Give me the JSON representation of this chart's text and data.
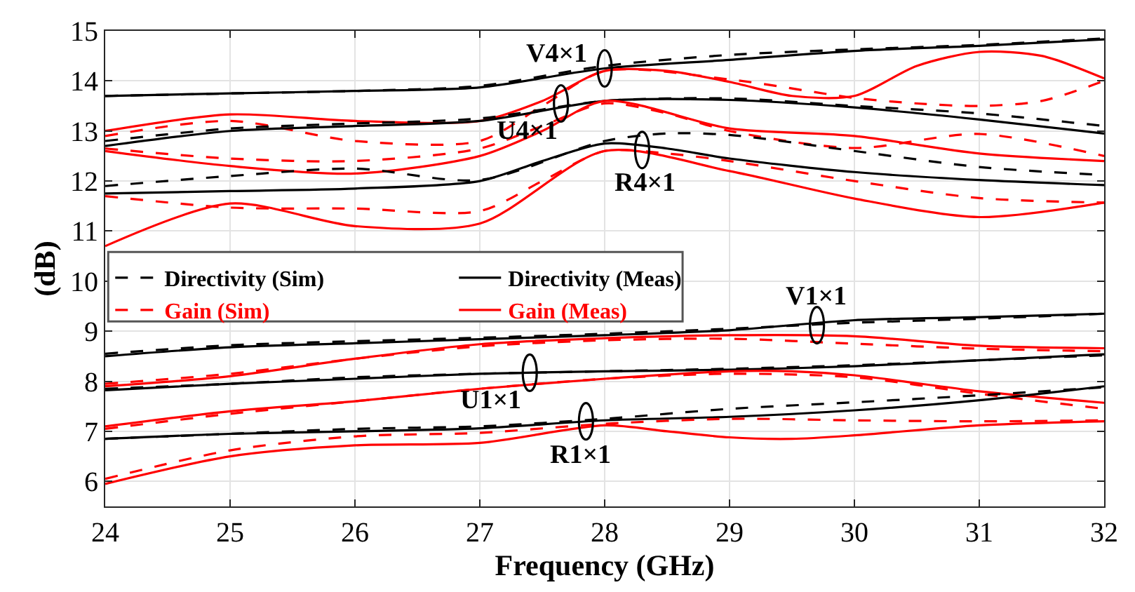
{
  "chart_data": {
    "type": "line",
    "xlabel": "Frequency (GHz)",
    "ylabel": "(dB)",
    "xlim": [
      24,
      32
    ],
    "ylim": [
      5.5,
      15
    ],
    "xticks": [
      24,
      25,
      26,
      27,
      28,
      29,
      30,
      31,
      32
    ],
    "yticks": [
      6,
      7,
      8,
      9,
      10,
      11,
      12,
      13,
      14,
      15
    ],
    "grid": true,
    "legend": "left",
    "marker": "none",
    "x": [
      24,
      25,
      26,
      27,
      28,
      29,
      30,
      31,
      32
    ],
    "series": [
      {
        "name": "Directivity (Sim)",
        "color": "#000000",
        "line_style": "dashed",
        "values": [
          13.7,
          13.75,
          13.8,
          13.9,
          14.3,
          14.52,
          14.63,
          14.72,
          14.85
        ]
      },
      {
        "name": "Directivity (Meas)",
        "color": "#000000",
        "line_style": "solid",
        "values": [
          13.7,
          13.75,
          13.8,
          13.87,
          14.25,
          14.42,
          14.6,
          14.7,
          14.83
        ]
      },
      {
        "name": "Gain (Sim)",
        "color": "#ff0000",
        "line_style": "dashed",
        "x": [
          24,
          25,
          26,
          27,
          27.5,
          28,
          29,
          30,
          30.5,
          31,
          31.5,
          32
        ],
        "values": [
          12.9,
          13.2,
          12.8,
          12.8,
          13.5,
          14.2,
          14.03,
          13.66,
          13.55,
          13.5,
          13.6,
          14.0
        ]
      },
      {
        "name": "Gain (Meas)",
        "color": "#ff0000",
        "line_style": "solid",
        "x": [
          24,
          25,
          26,
          27,
          27.5,
          28,
          28.5,
          29,
          29.5,
          30,
          30.5,
          31,
          31.5,
          32
        ],
        "values": [
          13.0,
          13.33,
          13.2,
          13.2,
          13.6,
          14.2,
          14.2,
          13.98,
          13.7,
          13.7,
          14.3,
          14.58,
          14.5,
          14.05
        ]
      },
      {
        "color": "#000000",
        "line_style": "dashed",
        "values": [
          12.8,
          13.05,
          13.15,
          13.25,
          13.6,
          13.65,
          13.5,
          13.35,
          13.1
        ]
      },
      {
        "color": "#000000",
        "line_style": "solid",
        "values": [
          12.7,
          13.0,
          13.1,
          13.2,
          13.6,
          13.62,
          13.47,
          13.23,
          12.95
        ]
      },
      {
        "color": "#ff0000",
        "line_style": "dashed",
        "x": [
          24,
          25,
          26,
          27,
          27.5,
          28,
          28.5,
          29,
          30,
          31,
          32
        ],
        "values": [
          12.65,
          12.45,
          12.4,
          12.65,
          13.1,
          13.55,
          13.35,
          13.0,
          12.66,
          12.94,
          12.5
        ]
      },
      {
        "color": "#ff0000",
        "line_style": "solid",
        "x": [
          24,
          25,
          26,
          27,
          27.5,
          28,
          29,
          30,
          31,
          32
        ],
        "values": [
          12.6,
          12.3,
          12.15,
          12.5,
          13.0,
          13.6,
          13.05,
          12.9,
          12.55,
          12.4
        ]
      },
      {
        "color": "#000000",
        "line_style": "dashed",
        "x": [
          24,
          25,
          26,
          27,
          28,
          28.5,
          29,
          30,
          31,
          32
        ],
        "values": [
          11.9,
          12.1,
          12.25,
          12.02,
          12.8,
          12.95,
          12.92,
          12.6,
          12.28,
          12.12
        ]
      },
      {
        "color": "#000000",
        "line_style": "solid",
        "x": [
          24,
          25,
          26,
          27,
          27.5,
          28,
          28.5,
          29,
          30,
          31,
          32
        ],
        "values": [
          11.75,
          11.8,
          11.85,
          12.0,
          12.4,
          12.75,
          12.65,
          12.45,
          12.18,
          12.02,
          11.92
        ]
      },
      {
        "color": "#ff0000",
        "line_style": "dashed",
        "x": [
          24,
          25,
          26,
          27,
          27.5,
          28,
          28.5,
          29,
          30,
          31,
          32
        ],
        "values": [
          11.7,
          11.47,
          11.45,
          11.4,
          12.0,
          12.6,
          12.55,
          12.4,
          12.0,
          11.66,
          11.57
        ]
      },
      {
        "color": "#ff0000",
        "line_style": "solid",
        "values": [
          10.7,
          11.55,
          11.1,
          11.15,
          12.6,
          12.2,
          11.65,
          11.28,
          11.57
        ]
      },
      {
        "color": "#000000",
        "line_style": "dashed",
        "values": [
          8.55,
          8.72,
          8.8,
          8.87,
          8.95,
          9.05,
          9.17,
          9.25,
          9.35
        ]
      },
      {
        "color": "#000000",
        "line_style": "solid",
        "values": [
          8.5,
          8.68,
          8.76,
          8.84,
          8.92,
          9.02,
          9.22,
          9.28,
          9.35
        ]
      },
      {
        "color": "#ff0000",
        "line_style": "dashed",
        "values": [
          7.95,
          8.15,
          8.45,
          8.7,
          8.82,
          8.85,
          8.75,
          8.65,
          8.6
        ]
      },
      {
        "color": "#ff0000",
        "line_style": "solid",
        "values": [
          7.9,
          8.1,
          8.45,
          8.74,
          8.86,
          8.92,
          8.9,
          8.71,
          8.66
        ]
      },
      {
        "color": "#000000",
        "line_style": "dashed",
        "values": [
          7.85,
          7.95,
          8.08,
          8.15,
          8.2,
          8.25,
          8.32,
          8.42,
          8.52
        ]
      },
      {
        "color": "#000000",
        "line_style": "solid",
        "values": [
          7.82,
          7.95,
          8.05,
          8.15,
          8.2,
          8.23,
          8.3,
          8.42,
          8.54
        ]
      },
      {
        "color": "#ff0000",
        "line_style": "dashed",
        "values": [
          7.05,
          7.35,
          7.6,
          7.85,
          8.05,
          8.15,
          8.08,
          7.75,
          7.45
        ]
      },
      {
        "color": "#ff0000",
        "line_style": "solid",
        "x": [
          24,
          25,
          26,
          27,
          28,
          29,
          29.5,
          30,
          31,
          32
        ],
        "values": [
          7.1,
          7.4,
          7.6,
          7.85,
          8.05,
          8.2,
          8.2,
          8.12,
          7.8,
          7.57
        ]
      },
      {
        "color": "#000000",
        "line_style": "dashed",
        "values": [
          6.85,
          6.95,
          7.05,
          7.1,
          7.25,
          7.45,
          7.58,
          7.72,
          7.88
        ]
      },
      {
        "color": "#000000",
        "line_style": "solid",
        "values": [
          6.85,
          6.95,
          7.0,
          7.06,
          7.22,
          7.29,
          7.42,
          7.62,
          7.9
        ]
      },
      {
        "color": "#ff0000",
        "line_style": "dashed",
        "values": [
          6.05,
          6.62,
          6.9,
          6.97,
          7.15,
          7.25,
          7.22,
          7.2,
          7.22
        ]
      },
      {
        "color": "#ff0000",
        "line_style": "solid",
        "x": [
          24,
          25,
          26,
          27,
          28,
          28.5,
          29,
          29.5,
          30,
          31,
          32
        ],
        "values": [
          5.95,
          6.5,
          6.72,
          6.77,
          7.12,
          7.0,
          6.88,
          6.85,
          6.92,
          7.12,
          7.2
        ]
      }
    ],
    "annotations": [
      {
        "text": "V4×1",
        "x": 28,
        "y": 14.25
      },
      {
        "text": "U4×1",
        "x": 27.65,
        "y": 13.55
      },
      {
        "text": "R4×1",
        "x": 28.3,
        "y": 12.62
      },
      {
        "text": "V1×1",
        "x": 29.7,
        "y": 9.12
      },
      {
        "text": "U1×1",
        "x": 27.4,
        "y": 8.17
      },
      {
        "text": "R1×1",
        "x": 27.85,
        "y": 7.2
      }
    ]
  }
}
